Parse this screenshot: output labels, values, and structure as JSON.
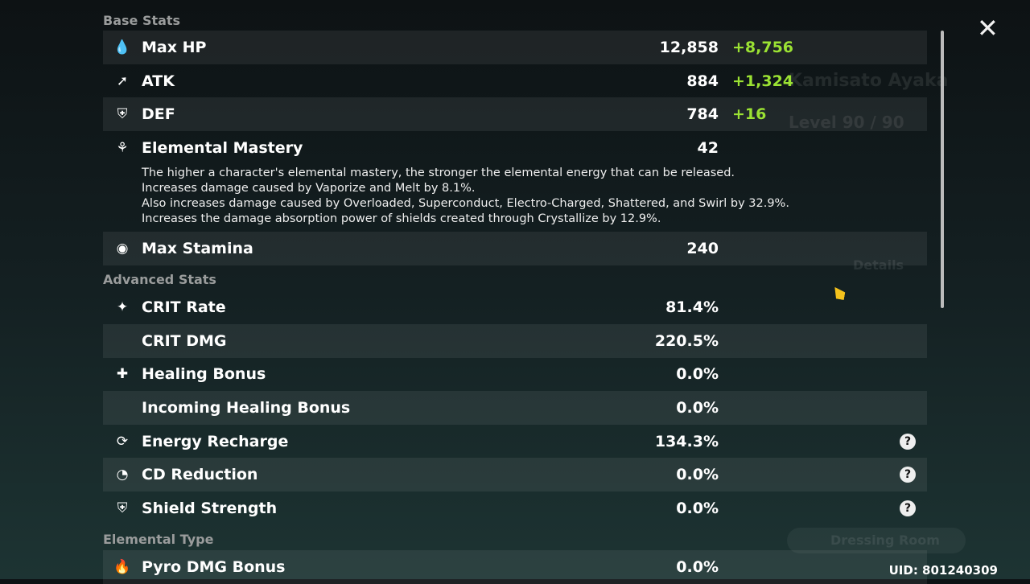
{
  "close_icon": "close-icon",
  "base_heading": "Base Stats",
  "base_stats": [
    {
      "label": "Max HP",
      "value": "12,858",
      "bonus": "+8,756",
      "icon": "hp-drop-icon"
    },
    {
      "label": "ATK",
      "value": "884",
      "bonus": "+1,324",
      "icon": "sword-icon"
    },
    {
      "label": "DEF",
      "value": "784",
      "bonus": "+16",
      "icon": "shield-icon"
    },
    {
      "label": "Elemental Mastery",
      "value": "42",
      "icon": "mastery-icon"
    },
    {
      "label": "Max Stamina",
      "value": "240",
      "icon": "stamina-icon"
    }
  ],
  "em_description": [
    "The higher a character's elemental mastery, the stronger the elemental energy that can be released.",
    "Increases damage caused by Vaporize and Melt by 8.1%.",
    "Also increases damage caused by Overloaded, Superconduct, Electro-Charged, Shattered, and Swirl by 32.9%.",
    "Increases the damage absorption power of shields created through Crystallize by 12.9%."
  ],
  "advanced_heading": "Advanced Stats",
  "advanced_stats": [
    {
      "label": "CRIT Rate",
      "value": "81.4%"
    },
    {
      "label": "CRIT DMG",
      "value": "220.5%"
    },
    {
      "label": "Healing Bonus",
      "value": "0.0%"
    },
    {
      "label": "Incoming Healing Bonus",
      "value": "0.0%"
    },
    {
      "label": "Energy Recharge",
      "value": "134.3%"
    },
    {
      "label": "CD Reduction",
      "value": "0.0%"
    },
    {
      "label": "Shield Strength",
      "value": "0.0%"
    }
  ],
  "elemental_heading": "Elemental Type",
  "elemental_stats": [
    {
      "label": "Pyro DMG Bonus",
      "value": "0.0%"
    }
  ],
  "help_symbol": "?",
  "uid": "UID: 801240309",
  "background": {
    "character_name": "Kamisato Ayaka",
    "level": "Level 90 / 90",
    "details": "Details",
    "dressing_room": "Dressing Room"
  },
  "colors": {
    "bonus": "#9be233"
  }
}
